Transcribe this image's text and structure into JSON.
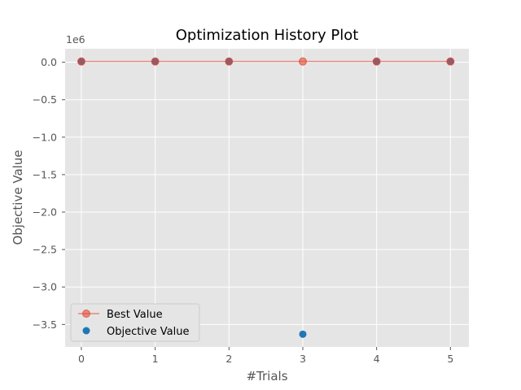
{
  "chart_data": {
    "type": "scatter",
    "title": "Optimization History Plot",
    "xlabel": "#Trials",
    "ylabel": "Objective Value",
    "y_offset_label": "1e6",
    "xlim": [
      -0.22,
      5.25
    ],
    "ylim": [
      -3.8,
      0.18
    ],
    "x_ticks": [
      0,
      1,
      2,
      3,
      4,
      5
    ],
    "x_tick_labels": [
      "0",
      "1",
      "2",
      "3",
      "4",
      "5"
    ],
    "y_ticks": [
      0.0,
      -0.5,
      -1.0,
      -1.5,
      -2.0,
      -2.5,
      -3.0,
      -3.5
    ],
    "y_tick_labels": [
      "0.0",
      "−0.5",
      "−1.0",
      "−1.5",
      "−2.0",
      "−2.5",
      "−3.0",
      "−3.5"
    ],
    "grid": true,
    "legend_position": "bottom-left",
    "series": [
      {
        "name": "Best Value",
        "kind": "line-marker",
        "color": "#e24a33",
        "x": [
          0,
          1,
          2,
          3,
          4,
          5
        ],
        "y": [
          0.01,
          0.01,
          0.01,
          0.01,
          0.01,
          0.01
        ]
      },
      {
        "name": "Objective Value",
        "kind": "scatter",
        "color": "#1f77b4",
        "x": [
          0,
          1,
          2,
          3,
          4,
          5
        ],
        "y": [
          0.01,
          0.01,
          0.01,
          -3.63,
          0.01,
          0.01
        ]
      }
    ]
  },
  "colors": {
    "plot_background": "#e5e5e5",
    "grid": "#ffffff",
    "overlap_marker": "#7a3f54",
    "legend_background": "#e5e5e5",
    "legend_border": "#cccccc"
  }
}
